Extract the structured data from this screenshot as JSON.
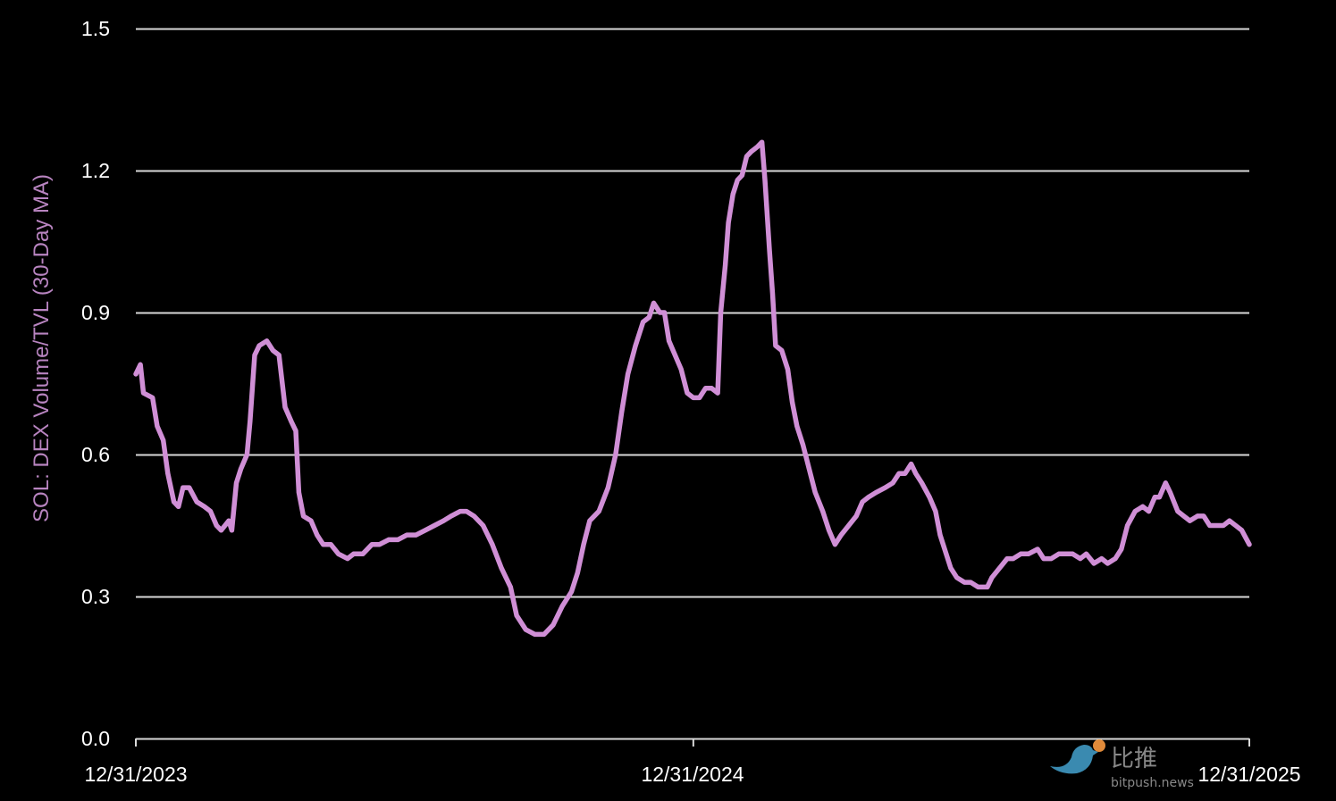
{
  "chart_data": {
    "type": "line",
    "title": "",
    "xlabel": "",
    "ylabel": "SOL: DEX Volume/TVL (30-Day MA)",
    "ylim": [
      0,
      1.5
    ],
    "xlim": [
      "2023-12-31",
      "2025-12-31"
    ],
    "yticks": [
      "0.0",
      "0.3",
      "0.6",
      "0.9",
      "1.2",
      "1.5"
    ],
    "xticks": [
      {
        "date": "2023-12-31",
        "label": "12/31/2023"
      },
      {
        "date": "2024-12-31",
        "label": "12/31/2024"
      },
      {
        "date": "2025-12-31",
        "label": "12/31/2025"
      }
    ],
    "grid": "horizontal",
    "colors": {
      "line": "#d08fd6",
      "ylabel": "#b884c0",
      "grid": "#d9d9d9",
      "background": "#000000"
    },
    "series": [
      {
        "x": [
          "2023-12-31",
          "2024-01-03",
          "2024-01-05",
          "2024-01-11",
          "2024-01-14",
          "2024-01-18",
          "2024-01-21",
          "2024-01-25",
          "2024-01-28",
          "2024-01-31",
          "2024-02-04",
          "2024-02-09",
          "2024-02-14",
          "2024-02-18",
          "2024-02-22",
          "2024-02-25",
          "2024-03-01",
          "2024-03-03",
          "2024-03-06",
          "2024-03-09",
          "2024-03-13",
          "2024-03-15",
          "2024-03-18",
          "2024-03-21",
          "2024-03-26",
          "2024-03-30",
          "2024-04-03",
          "2024-04-07",
          "2024-04-11",
          "2024-04-14",
          "2024-04-16",
          "2024-04-19",
          "2024-04-24",
          "2024-04-28",
          "2024-05-02",
          "2024-05-07",
          "2024-05-12",
          "2024-05-18",
          "2024-05-22",
          "2024-05-28",
          "2024-06-03",
          "2024-06-08",
          "2024-06-14",
          "2024-06-20",
          "2024-06-26",
          "2024-07-02",
          "2024-07-08",
          "2024-07-14",
          "2024-07-20",
          "2024-07-25",
          "2024-07-31",
          "2024-08-04",
          "2024-08-09",
          "2024-08-15",
          "2024-08-21",
          "2024-08-27",
          "2024-09-02",
          "2024-09-06",
          "2024-09-12",
          "2024-09-18",
          "2024-09-24",
          "2024-09-30",
          "2024-10-06",
          "2024-10-12",
          "2024-10-16",
          "2024-10-20",
          "2024-10-24",
          "2024-10-30",
          "2024-11-05",
          "2024-11-10",
          "2024-11-14",
          "2024-11-18",
          "2024-11-23",
          "2024-11-28",
          "2024-12-02",
          "2024-12-05",
          "2024-12-09",
          "2024-12-12",
          "2024-12-15",
          "2024-12-19",
          "2024-12-23",
          "2024-12-27",
          "2024-12-31",
          "2025-01-04",
          "2025-01-08",
          "2025-01-12",
          "2025-01-16",
          "2025-01-18",
          "2025-01-21",
          "2025-01-23",
          "2025-01-26",
          "2025-01-29",
          "2025-02-01",
          "2025-02-04",
          "2025-02-07",
          "2025-02-11",
          "2025-02-14",
          "2025-02-16",
          "2025-02-19",
          "2025-02-21",
          "2025-02-23",
          "2025-02-27",
          "2025-03-03",
          "2025-03-06",
          "2025-03-09",
          "2025-03-13",
          "2025-03-17",
          "2025-03-21",
          "2025-03-26",
          "2025-03-30",
          "2025-04-03",
          "2025-04-07",
          "2025-04-12",
          "2025-04-17",
          "2025-04-21",
          "2025-04-25",
          "2025-04-30",
          "2025-05-06",
          "2025-05-11",
          "2025-05-15",
          "2025-05-19",
          "2025-05-23",
          "2025-05-26",
          "2025-05-30",
          "2025-06-04",
          "2025-06-08",
          "2025-06-11",
          "2025-06-15",
          "2025-06-18",
          "2025-06-22",
          "2025-06-27",
          "2025-07-01",
          "2025-07-06",
          "2025-07-12",
          "2025-07-15",
          "2025-07-20",
          "2025-07-25",
          "2025-07-29",
          "2025-08-03",
          "2025-08-08",
          "2025-08-14",
          "2025-08-18",
          "2025-08-23",
          "2025-08-28",
          "2025-09-01",
          "2025-09-06",
          "2025-09-11",
          "2025-09-15",
          "2025-09-20",
          "2025-09-25",
          "2025-09-29",
          "2025-10-04",
          "2025-10-08",
          "2025-10-12",
          "2025-10-17",
          "2025-10-22",
          "2025-10-26",
          "2025-10-30",
          "2025-11-02",
          "2025-11-06",
          "2025-11-09",
          "2025-11-14",
          "2025-11-18",
          "2025-11-22",
          "2025-11-27",
          "2025-12-01",
          "2025-12-05",
          "2025-12-09",
          "2025-12-14",
          "2025-12-18",
          "2025-12-22",
          "2025-12-26",
          "2025-12-31"
        ],
        "y": [
          0.77,
          0.79,
          0.73,
          0.72,
          0.66,
          0.63,
          0.56,
          0.5,
          0.49,
          0.53,
          0.53,
          0.5,
          0.49,
          0.48,
          0.45,
          0.44,
          0.46,
          0.44,
          0.54,
          0.57,
          0.6,
          0.67,
          0.81,
          0.83,
          0.84,
          0.82,
          0.81,
          0.7,
          0.67,
          0.65,
          0.52,
          0.47,
          0.46,
          0.43,
          0.41,
          0.41,
          0.39,
          0.38,
          0.39,
          0.39,
          0.41,
          0.41,
          0.42,
          0.42,
          0.43,
          0.43,
          0.44,
          0.45,
          0.46,
          0.47,
          0.48,
          0.48,
          0.47,
          0.45,
          0.41,
          0.36,
          0.32,
          0.26,
          0.23,
          0.22,
          0.22,
          0.24,
          0.28,
          0.31,
          0.35,
          0.41,
          0.46,
          0.48,
          0.53,
          0.6,
          0.69,
          0.77,
          0.83,
          0.88,
          0.89,
          0.92,
          0.9,
          0.9,
          0.84,
          0.81,
          0.78,
          0.73,
          0.72,
          0.72,
          0.74,
          0.74,
          0.73,
          0.9,
          1.0,
          1.09,
          1.15,
          1.18,
          1.19,
          1.23,
          1.24,
          1.25,
          1.26,
          1.18,
          1.03,
          0.94,
          0.83,
          0.82,
          0.78,
          0.71,
          0.66,
          0.62,
          0.57,
          0.52,
          0.48,
          0.44,
          0.41,
          0.43,
          0.45,
          0.47,
          0.5,
          0.51,
          0.52,
          0.53,
          0.54,
          0.56,
          0.56,
          0.58,
          0.56,
          0.54,
          0.51,
          0.48,
          0.43,
          0.39,
          0.36,
          0.34,
          0.33,
          0.33,
          0.32,
          0.32,
          0.34,
          0.36,
          0.38,
          0.38,
          0.39,
          0.39,
          0.4,
          0.38,
          0.38,
          0.39,
          0.39,
          0.39,
          0.38,
          0.39,
          0.37,
          0.38,
          0.37,
          0.38,
          0.4,
          0.45,
          0.48,
          0.49,
          0.48,
          0.51,
          0.51,
          0.54,
          0.52,
          0.48,
          0.47,
          0.46,
          0.47,
          0.47,
          0.45,
          0.45,
          0.45,
          0.46,
          0.45,
          0.44,
          0.41
        ]
      }
    ]
  },
  "watermark": {
    "logo_text": "比推",
    "site": "bitpush.news"
  }
}
